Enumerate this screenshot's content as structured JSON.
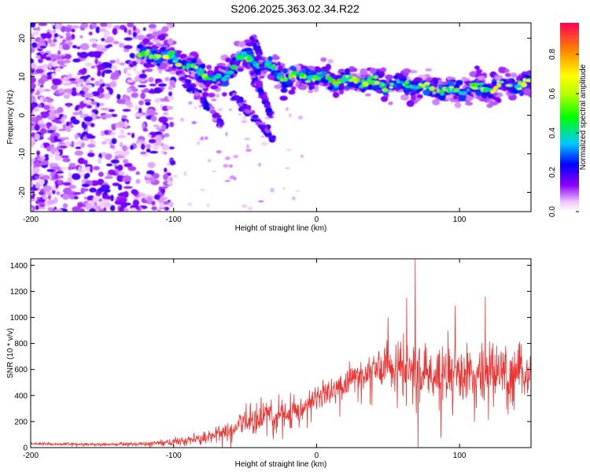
{
  "title": "S206.2025.363.02.34.R22",
  "chart_data": [
    {
      "type": "heatmap",
      "panel": "spectrogram",
      "xlabel": "Height of straight line (km)",
      "ylabel": "Frequency (Hz)",
      "xlim": [
        -200,
        150
      ],
      "ylim": [
        -25,
        24
      ],
      "xticks": [
        -200,
        -100,
        0,
        100
      ],
      "yticks": [
        -20,
        -10,
        0,
        10,
        20
      ],
      "colorbar": {
        "label": "Normalized spectral amplitude",
        "range": [
          0.0,
          0.96
        ],
        "ticks": [
          0.0,
          0.2,
          0.4,
          0.6,
          0.8
        ]
      },
      "ridge": {
        "description": "dominant frequency ridge (Hz) vs height (km)",
        "x": [
          -125,
          -115,
          -105,
          -95,
          -85,
          -75,
          -65,
          -55,
          -45,
          -35,
          -25,
          -15,
          -5,
          5,
          15,
          25,
          35,
          45,
          55,
          65,
          75,
          85,
          95,
          105,
          115,
          125,
          135,
          150
        ],
        "y": [
          15,
          16,
          15,
          14,
          12,
          10,
          9,
          15,
          14,
          13,
          10,
          10,
          10,
          10,
          9,
          9,
          9,
          8,
          8,
          8,
          7,
          7,
          6,
          7,
          7,
          7,
          8,
          8
        ],
        "amplitude": [
          0.4,
          0.5,
          0.6,
          0.5,
          0.5,
          0.4,
          0.3,
          0.4,
          0.4,
          0.3,
          0.4,
          0.45,
          0.5,
          0.7,
          0.9,
          0.6,
          0.5,
          0.5,
          0.6,
          0.6,
          0.5,
          0.7,
          0.8,
          0.6,
          0.6,
          0.7,
          0.6,
          0.6
        ]
      },
      "branches": [
        {
          "x": [
            -95,
            -85,
            -75,
            -65
          ],
          "y": [
            10,
            6,
            2,
            -3
          ]
        },
        {
          "x": [
            -60,
            -50,
            -40,
            -30
          ],
          "y": [
            6,
            2,
            -2,
            -6
          ]
        },
        {
          "x": [
            -45,
            -38,
            -32
          ],
          "y": [
            10,
            6,
            0
          ]
        },
        {
          "x": [
            -45,
            -42,
            -38
          ],
          "y": [
            20,
            18,
            13
          ]
        }
      ],
      "noise_region_km": [
        -200,
        -110
      ]
    },
    {
      "type": "line",
      "panel": "snr",
      "xlabel": "Height of straight line (km)",
      "ylabel": "SNR (10 * v/v)",
      "xlim": [
        -200,
        150
      ],
      "ylim": [
        0,
        1450
      ],
      "xticks": [
        -200,
        -100,
        0,
        100
      ],
      "yticks": [
        0,
        200,
        400,
        600,
        800,
        1000,
        1200,
        1400
      ],
      "color": "#ee3333",
      "envelope": {
        "description": "approximate trend of the noisy SNR trace (mean, spread) in data units",
        "x": [
          -200,
          -150,
          -120,
          -100,
          -80,
          -60,
          -50,
          -40,
          -30,
          -20,
          -10,
          0,
          10,
          20,
          30,
          40,
          50,
          60,
          70,
          80,
          90,
          100,
          110,
          120,
          130,
          140,
          150
        ],
        "mean": [
          30,
          25,
          30,
          45,
          70,
          130,
          200,
          240,
          250,
          260,
          300,
          380,
          430,
          500,
          560,
          610,
          640,
          620,
          600,
          560,
          580,
          600,
          580,
          600,
          560,
          600,
          560
        ],
        "spread": [
          10,
          10,
          15,
          25,
          40,
          70,
          110,
          130,
          140,
          120,
          100,
          110,
          110,
          120,
          120,
          130,
          150,
          200,
          230,
          230,
          230,
          230,
          220,
          230,
          220,
          230,
          220
        ]
      },
      "peaks": [
        {
          "x": 69,
          "y": 1450
        },
        {
          "x": 63,
          "y": 1150
        },
        {
          "x": 97,
          "y": 1090
        },
        {
          "x": 118,
          "y": 1160
        },
        {
          "x": 50,
          "y": 1000
        }
      ]
    }
  ]
}
